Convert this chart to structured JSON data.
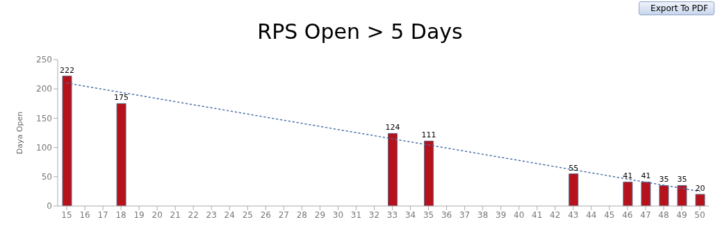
{
  "chart_data": {
    "type": "bar",
    "title": "RPS Open > 5 Days",
    "ylabel": "Daya Open",
    "annotations": [
      "Export To PDF"
    ],
    "categories": [
      "15",
      "16",
      "17",
      "18",
      "19",
      "20",
      "21",
      "22",
      "23",
      "24",
      "25",
      "26",
      "27",
      "28",
      "29",
      "30",
      "31",
      "32",
      "33",
      "34",
      "35",
      "36",
      "37",
      "38",
      "39",
      "40",
      "41",
      "42",
      "43",
      "44",
      "45",
      "46",
      "47",
      "48",
      "49",
      "50"
    ],
    "series": [
      {
        "color": "#b5121b",
        "values": [
          222,
          null,
          null,
          175,
          null,
          null,
          null,
          null,
          null,
          null,
          null,
          null,
          null,
          null,
          null,
          null,
          null,
          null,
          124,
          null,
          111,
          null,
          null,
          null,
          null,
          null,
          null,
          null,
          55,
          null,
          null,
          41,
          41,
          35,
          35,
          20
        ],
        "value_labels": [
          "222",
          null,
          null,
          "175",
          null,
          null,
          null,
          null,
          null,
          null,
          null,
          null,
          null,
          null,
          null,
          null,
          null,
          null,
          "124",
          null,
          "111",
          null,
          null,
          null,
          null,
          null,
          null,
          null,
          "55",
          null,
          null,
          "41",
          "41",
          "35",
          "35",
          "20"
        ]
      },
      {
        "type": "line",
        "color": "#4a6fa5",
        "x": [
          "15",
          "50"
        ],
        "values": [
          210,
          25
        ],
        "line_style": "dotted",
        "marker": "none"
      }
    ],
    "ylim": [
      0,
      250
    ],
    "yticks": [
      0,
      50,
      100,
      150,
      200,
      250
    ],
    "grid": false,
    "legend": false
  }
}
